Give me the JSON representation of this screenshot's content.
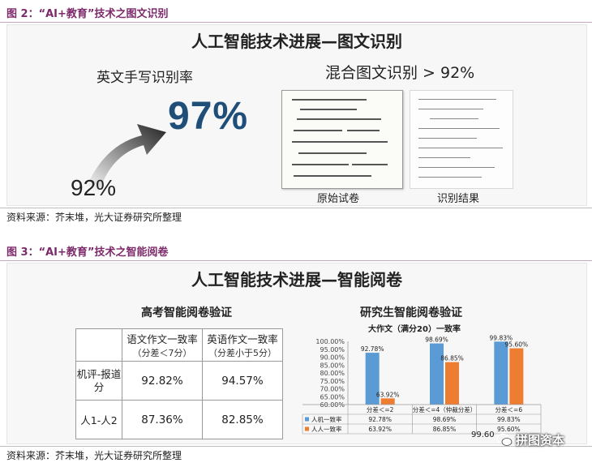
{
  "figure2": {
    "label": "图 2：“AI+教育”技术之图文识别",
    "banner_title": "人工智能技术进展—图文识别",
    "handwriting": {
      "title": "英文手写识别率",
      "from_value": "92%",
      "to_value": "97%"
    },
    "mixed": {
      "title": "混合图文识别 > 92%",
      "left_caption": "原始试卷",
      "right_caption": "识别结果"
    },
    "source": "资料来源：芥末堆，光大证券研究所整理"
  },
  "figure3": {
    "label": "图 3：“AI+教育”技术之智能阅卷",
    "banner_title": "人工智能技术进展—智能阅卷",
    "gaokao": {
      "title": "高考智能阅卷验证",
      "col1_main": "语文作文一致率",
      "col1_sub": "（分差＜7分）",
      "col2_main": "英语作文一致率",
      "col2_sub": "（分差小于5分）",
      "rows": [
        {
          "label": "机评-报道分",
          "v1": "92.82%",
          "v2": "94.57%"
        },
        {
          "label": "人1-人2",
          "v1": "87.36%",
          "v2": "82.85%"
        }
      ]
    },
    "graduate": {
      "title": "研究生智能阅卷验证",
      "source_overlap": "99.60"
    },
    "source": "资料来源：芥末堆，光大证券研究所整理"
  },
  "watermark": {
    "icon": "wechat-icon",
    "text": "拼图资本"
  },
  "colors": {
    "figure_label": "#7d2a6b",
    "arrow": "#1f4e79",
    "bar_series_1": "#5b9bd5",
    "bar_series_2": "#ed7d31"
  },
  "chart_data": {
    "type": "bar",
    "title": "大作文（满分20）一致率",
    "categories": [
      "分差＜=2",
      "分差＜=4（仲裁分差）",
      "分差＜=6"
    ],
    "series": [
      {
        "name": "人机一致率",
        "values": [
          92.78,
          98.69,
          99.83
        ],
        "labels": [
          "92.78%",
          "98.69%",
          "99.83%"
        ]
      },
      {
        "name": "人人一致率",
        "values": [
          63.92,
          86.85,
          95.6
        ],
        "labels": [
          "63.92%",
          "86.85%",
          "95.60%"
        ]
      }
    ],
    "table_rows": [
      [
        "92.78%",
        "98.69%",
        "99.83%"
      ],
      [
        "63.92%",
        "86.85%",
        "95.60%"
      ]
    ],
    "ylim": [
      60,
      100
    ],
    "yticks": [
      "100.00%",
      "95.00%",
      "90.00%",
      "85.00%",
      "80.00%",
      "75.00%",
      "70.00%",
      "65.00%",
      "60.00%"
    ],
    "ytick_values": [
      100,
      95,
      90,
      85,
      80,
      75,
      70,
      65,
      60
    ],
    "legend": "bottom data table",
    "grid": false
  }
}
